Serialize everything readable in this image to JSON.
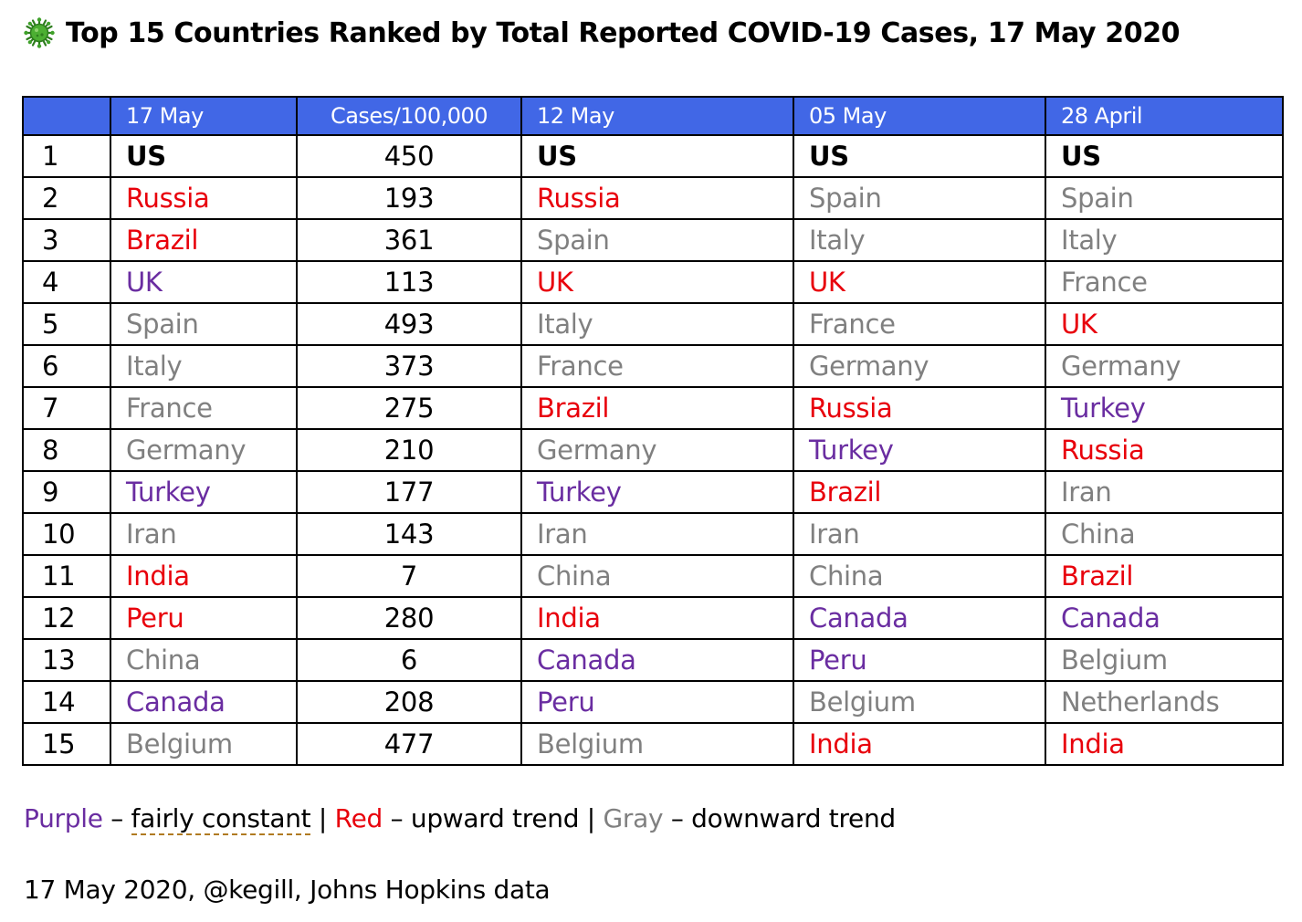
{
  "title": "Top 15 Countries Ranked by Total Reported COVID-19 Cases, 17 May 2020",
  "icon": "virus-icon",
  "colors": {
    "header_bg": "#4167e6",
    "fairly_constant": "#6a2da1",
    "upward_trend": "#e8000b",
    "downward_trend": "#808080",
    "top": "#000000"
  },
  "table": {
    "headers": [
      "",
      "17 May",
      "Cases/100,000",
      "12 May",
      "05 May",
      "28 April"
    ],
    "rows": [
      {
        "rank": "1",
        "may17": {
          "name": "US",
          "c": "black"
        },
        "cases": "450",
        "may12": {
          "name": "US",
          "c": "black"
        },
        "may05": {
          "name": "US",
          "c": "black"
        },
        "apr28": {
          "name": "US",
          "c": "black"
        }
      },
      {
        "rank": "2",
        "may17": {
          "name": "Russia",
          "c": "red"
        },
        "cases": "193",
        "may12": {
          "name": "Russia",
          "c": "red"
        },
        "may05": {
          "name": "Spain",
          "c": "gray"
        },
        "apr28": {
          "name": "Spain",
          "c": "gray"
        }
      },
      {
        "rank": "3",
        "may17": {
          "name": "Brazil",
          "c": "red"
        },
        "cases": "361",
        "may12": {
          "name": "Spain",
          "c": "gray"
        },
        "may05": {
          "name": "Italy",
          "c": "gray"
        },
        "apr28": {
          "name": "Italy",
          "c": "gray"
        }
      },
      {
        "rank": "4",
        "may17": {
          "name": "UK",
          "c": "purple"
        },
        "cases": "113",
        "may12": {
          "name": "UK",
          "c": "red"
        },
        "may05": {
          "name": "UK",
          "c": "red"
        },
        "apr28": {
          "name": "France",
          "c": "gray"
        }
      },
      {
        "rank": "5",
        "may17": {
          "name": "Spain",
          "c": "gray"
        },
        "cases": "493",
        "may12": {
          "name": "Italy",
          "c": "gray"
        },
        "may05": {
          "name": "France",
          "c": "gray"
        },
        "apr28": {
          "name": "UK",
          "c": "red"
        }
      },
      {
        "rank": "6",
        "may17": {
          "name": "Italy",
          "c": "gray"
        },
        "cases": "373",
        "may12": {
          "name": "France",
          "c": "gray"
        },
        "may05": {
          "name": "Germany",
          "c": "gray"
        },
        "apr28": {
          "name": "Germany",
          "c": "gray"
        }
      },
      {
        "rank": "7",
        "may17": {
          "name": "France",
          "c": "gray"
        },
        "cases": "275",
        "may12": {
          "name": "Brazil",
          "c": "red"
        },
        "may05": {
          "name": "Russia",
          "c": "red"
        },
        "apr28": {
          "name": "Turkey",
          "c": "purple"
        }
      },
      {
        "rank": "8",
        "may17": {
          "name": "Germany",
          "c": "gray"
        },
        "cases": "210",
        "may12": {
          "name": "Germany",
          "c": "gray"
        },
        "may05": {
          "name": "Turkey",
          "c": "purple"
        },
        "apr28": {
          "name": "Russia",
          "c": "red"
        }
      },
      {
        "rank": "9",
        "may17": {
          "name": "Turkey",
          "c": "purple"
        },
        "cases": "177",
        "may12": {
          "name": "Turkey",
          "c": "purple"
        },
        "may05": {
          "name": "Brazil",
          "c": "red"
        },
        "apr28": {
          "name": "Iran",
          "c": "gray"
        }
      },
      {
        "rank": "10",
        "may17": {
          "name": "Iran",
          "c": "gray"
        },
        "cases": "143",
        "may12": {
          "name": "Iran",
          "c": "gray"
        },
        "may05": {
          "name": "Iran",
          "c": "gray"
        },
        "apr28": {
          "name": "China",
          "c": "gray"
        }
      },
      {
        "rank": "11",
        "may17": {
          "name": "India",
          "c": "red"
        },
        "cases": "7",
        "may12": {
          "name": "China",
          "c": "gray"
        },
        "may05": {
          "name": "China",
          "c": "gray"
        },
        "apr28": {
          "name": "Brazil",
          "c": "red"
        }
      },
      {
        "rank": "12",
        "may17": {
          "name": "Peru",
          "c": "red"
        },
        "cases": "280",
        "may12": {
          "name": "India",
          "c": "red"
        },
        "may05": {
          "name": "Canada",
          "c": "purple"
        },
        "apr28": {
          "name": "Canada",
          "c": "purple"
        }
      },
      {
        "rank": "13",
        "may17": {
          "name": "China",
          "c": "gray"
        },
        "cases": "6",
        "may12": {
          "name": "Canada",
          "c": "purple"
        },
        "may05": {
          "name": "Peru",
          "c": "purple"
        },
        "apr28": {
          "name": "Belgium",
          "c": "gray"
        }
      },
      {
        "rank": "14",
        "may17": {
          "name": "Canada",
          "c": "purple"
        },
        "cases": "208",
        "may12": {
          "name": "Peru",
          "c": "purple"
        },
        "may05": {
          "name": "Belgium",
          "c": "gray"
        },
        "apr28": {
          "name": "Netherlands",
          "c": "gray"
        }
      },
      {
        "rank": "15",
        "may17": {
          "name": "Belgium",
          "c": "gray"
        },
        "cases": "477",
        "may12": {
          "name": "Belgium",
          "c": "gray"
        },
        "may05": {
          "name": "India",
          "c": "red"
        },
        "apr28": {
          "name": "India",
          "c": "red"
        }
      }
    ]
  },
  "legend": {
    "purple_label": "Purple",
    "purple_desc_prefix": " – ",
    "purple_desc": "fairly constant",
    "sep1": " | ",
    "red_label": "Red",
    "red_desc": " – upward trend",
    "sep2": " | ",
    "gray_label": "Gray",
    "gray_desc": " – downward trend"
  },
  "source": "17 May 2020, @kegill, Johns Hopkins data"
}
